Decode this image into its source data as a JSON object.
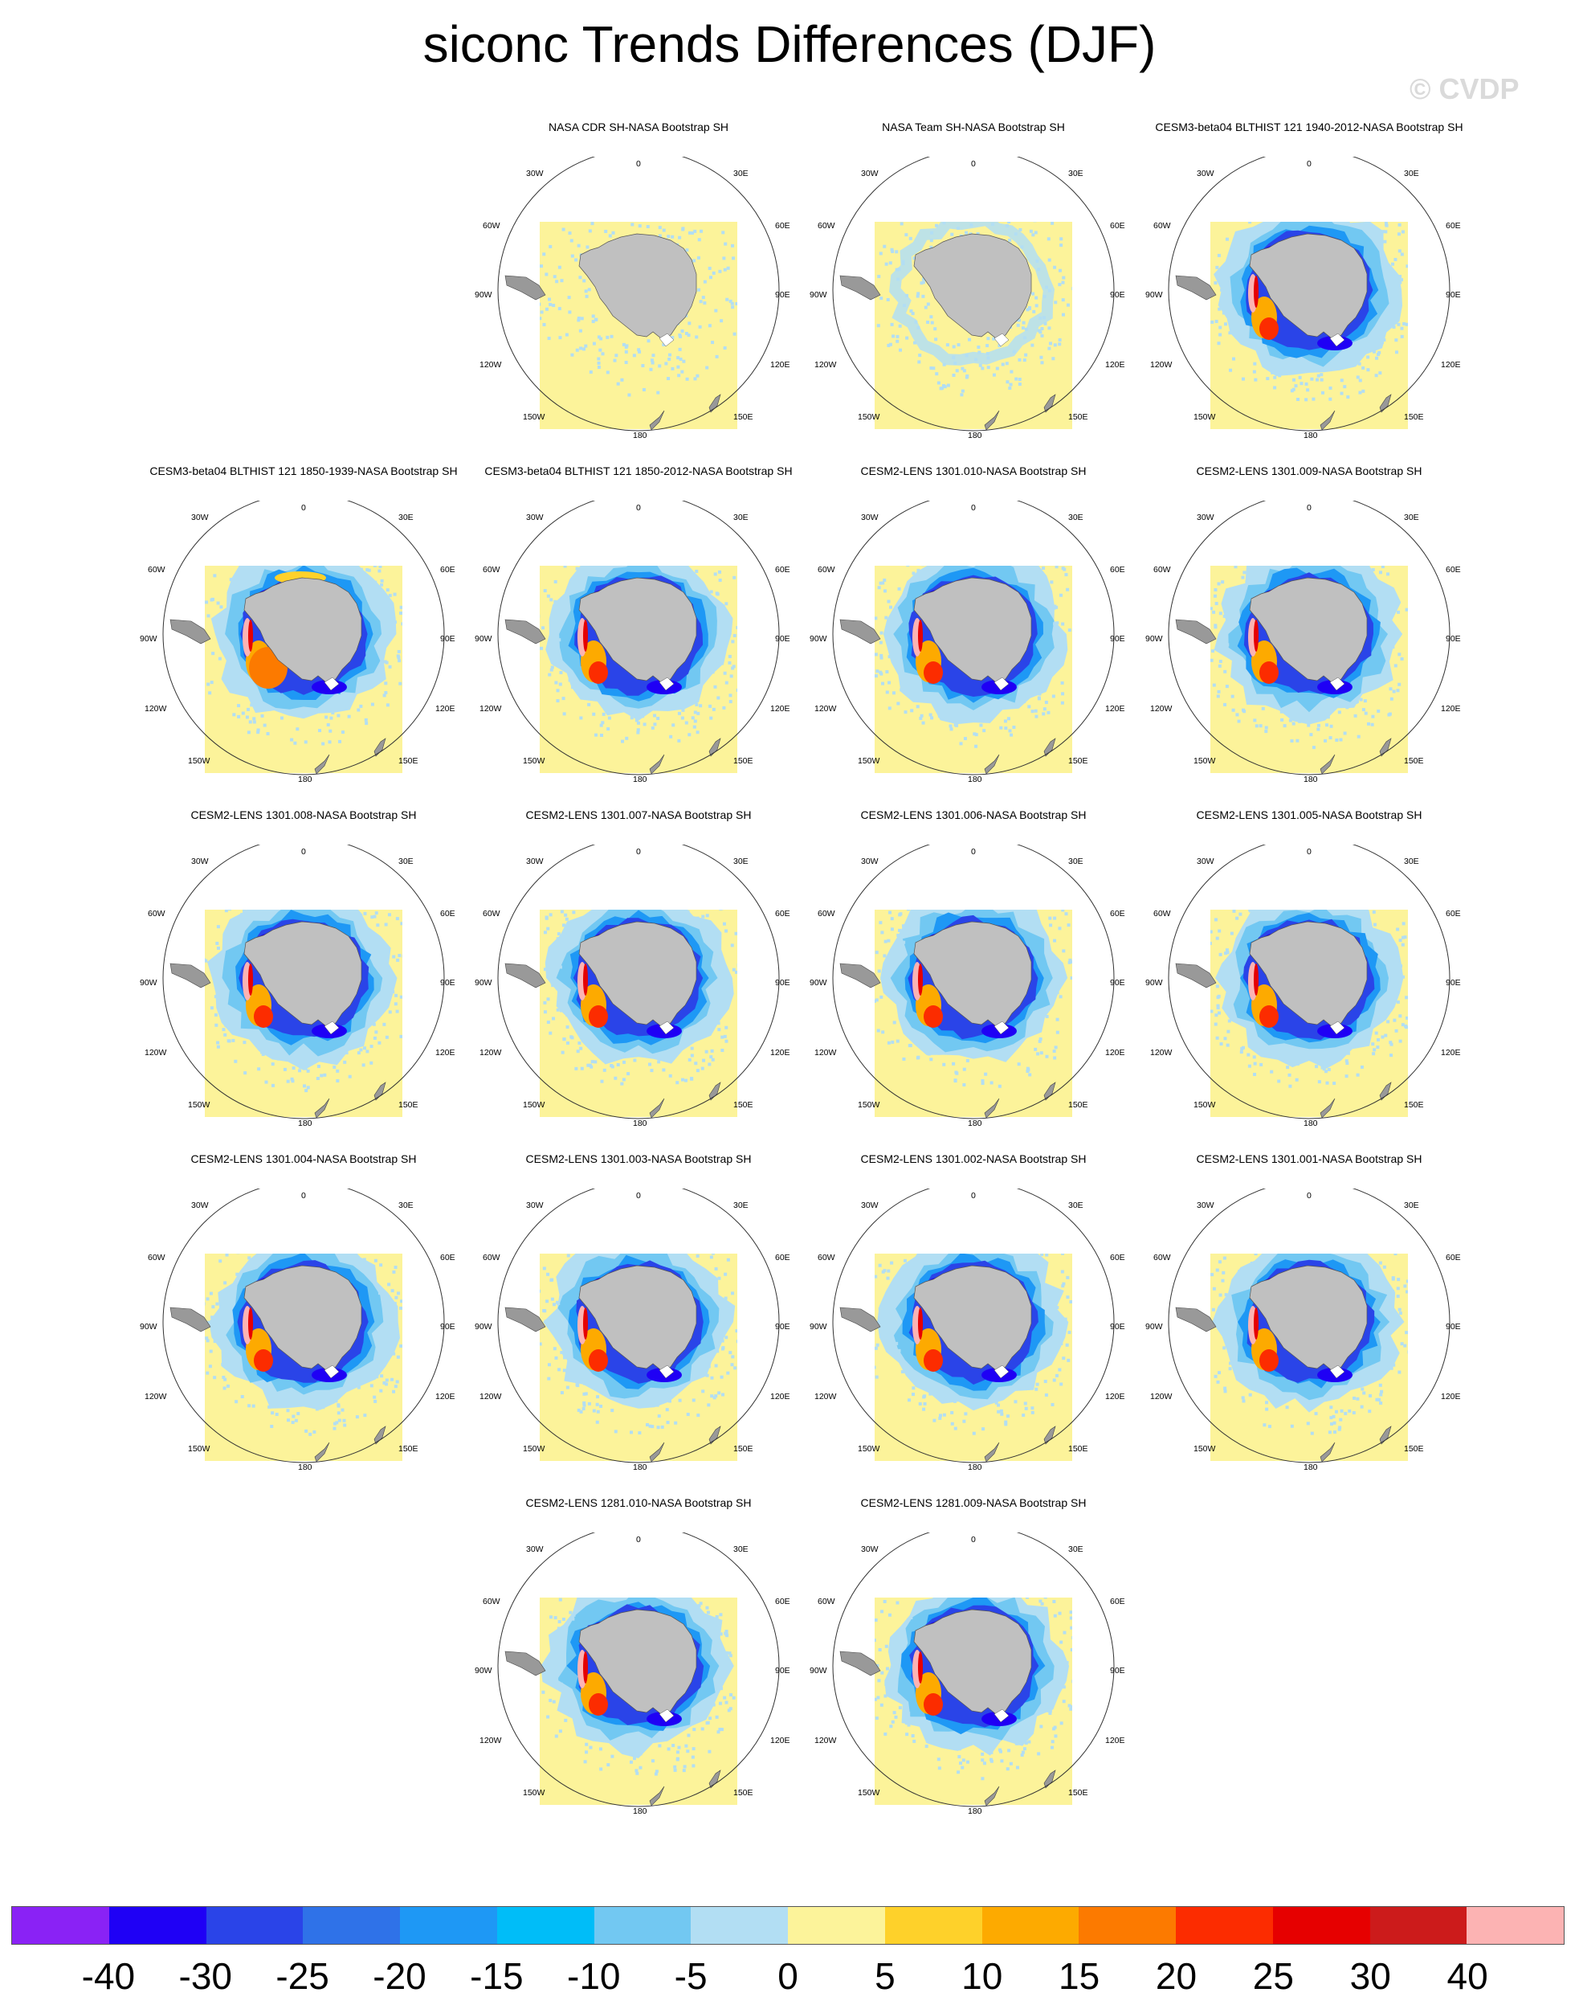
{
  "title": "siconc Trends Differences (DJF)",
  "watermark": "© CVDP",
  "map_labels": {
    "top": "0",
    "bottom": "180",
    "left": "90W",
    "right": "90E",
    "upper_left_outer": "60W",
    "upper_right_outer": "60E",
    "upper_left_inner": "30W",
    "upper_right_inner": "30E",
    "lower_left_outer": "120W",
    "lower_right_outer": "120E",
    "lower_left_inner": "150W",
    "lower_right_inner": "150E"
  },
  "panels": [
    {
      "title": "NASA CDR SH-NASA Bootstrap SH",
      "row": 0,
      "col": 1,
      "pattern": "obs1"
    },
    {
      "title": "NASA Team SH-NASA Bootstrap SH",
      "row": 0,
      "col": 2,
      "pattern": "obs2"
    },
    {
      "title": "CESM3-beta04 BLTHIST 121 1940-2012-NASA Bootstrap SH",
      "row": 0,
      "col": 3,
      "pattern": "model"
    },
    {
      "title": "CESM3-beta04 BLTHIST 121 1850-1939-NASA Bootstrap SH",
      "row": 1,
      "col": 0,
      "pattern": "warm"
    },
    {
      "title": "CESM3-beta04 BLTHIST 121 1850-2012-NASA Bootstrap SH",
      "row": 1,
      "col": 1,
      "pattern": "model"
    },
    {
      "title": "CESM2-LENS 1301.010-NASA Bootstrap SH",
      "row": 1,
      "col": 2,
      "pattern": "model"
    },
    {
      "title": "CESM2-LENS 1301.009-NASA Bootstrap SH",
      "row": 1,
      "col": 3,
      "pattern": "model"
    },
    {
      "title": "CESM2-LENS 1301.008-NASA Bootstrap SH",
      "row": 2,
      "col": 0,
      "pattern": "model"
    },
    {
      "title": "CESM2-LENS 1301.007-NASA Bootstrap SH",
      "row": 2,
      "col": 1,
      "pattern": "model"
    },
    {
      "title": "CESM2-LENS 1301.006-NASA Bootstrap SH",
      "row": 2,
      "col": 2,
      "pattern": "model"
    },
    {
      "title": "CESM2-LENS 1301.005-NASA Bootstrap SH",
      "row": 2,
      "col": 3,
      "pattern": "model"
    },
    {
      "title": "CESM2-LENS 1301.004-NASA Bootstrap SH",
      "row": 3,
      "col": 0,
      "pattern": "model"
    },
    {
      "title": "CESM2-LENS 1301.003-NASA Bootstrap SH",
      "row": 3,
      "col": 1,
      "pattern": "model"
    },
    {
      "title": "CESM2-LENS 1301.002-NASA Bootstrap SH",
      "row": 3,
      "col": 2,
      "pattern": "model"
    },
    {
      "title": "CESM2-LENS 1301.001-NASA Bootstrap SH",
      "row": 3,
      "col": 3,
      "pattern": "model"
    },
    {
      "title": "CESM2-LENS 1281.010-NASA Bootstrap SH",
      "row": 4,
      "col": 1,
      "pattern": "model"
    },
    {
      "title": "CESM2-LENS 1281.009-NASA Bootstrap SH",
      "row": 4,
      "col": 2,
      "pattern": "model"
    }
  ],
  "colorbar": {
    "colors": [
      "#8a22f5",
      "#1f00f5",
      "#2a44e8",
      "#2f72e8",
      "#1e98f5",
      "#00bdf8",
      "#72c8f2",
      "#b2def3",
      "#fcf39a",
      "#fed12a",
      "#fdaa00",
      "#fc7a00",
      "#fc2c00",
      "#e60000",
      "#cc1b1b",
      "#fcb3b3"
    ],
    "labels": [
      "-40",
      "-30",
      "-25",
      "-20",
      "-15",
      "-10",
      "-5",
      "0",
      "5",
      "10",
      "15",
      "20",
      "25",
      "30",
      "40"
    ]
  },
  "map_colors": {
    "land": "#c0c0c0",
    "zero_band": "#fcf39a",
    "light_negative": "#b2def3"
  }
}
